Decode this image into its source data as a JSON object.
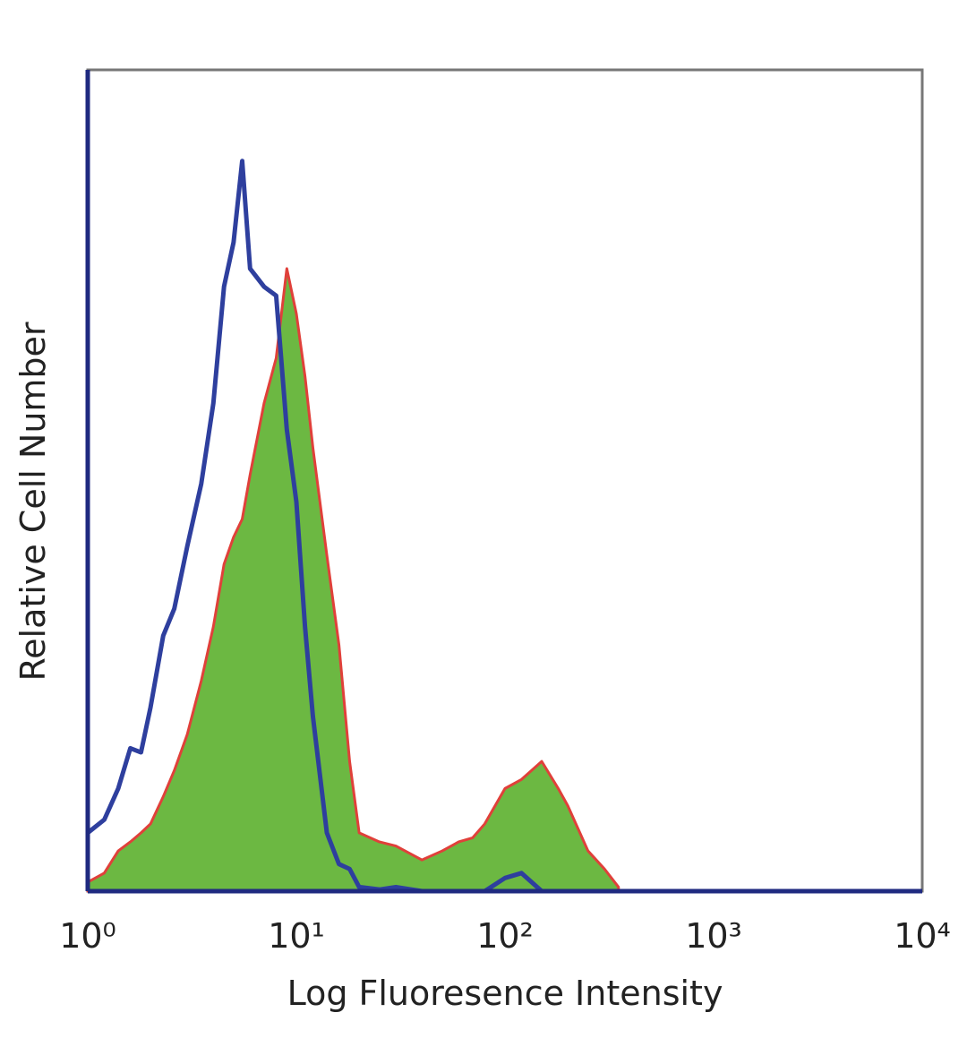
{
  "chart_data": {
    "type": "histogram-overlay",
    "x_label": "Log Fluoresence Intensity",
    "y_label": "Relative Cell Number",
    "xlog": true,
    "xlim": [
      1,
      10000
    ],
    "ylim": [
      0,
      100
    ],
    "xticks": [
      {
        "value": 1,
        "label": "10⁰"
      },
      {
        "value": 10,
        "label": "10¹"
      },
      {
        "value": 100,
        "label": "10²"
      },
      {
        "value": 1000,
        "label": "10³"
      },
      {
        "value": 10000,
        "label": "10⁴"
      }
    ],
    "x": [
      1,
      1.2,
      1.4,
      1.6,
      1.8,
      2,
      2.3,
      2.6,
      3,
      3.5,
      4,
      4.5,
      5,
      5.5,
      6,
      7,
      8,
      9,
      10,
      11,
      12,
      14,
      16,
      18,
      20,
      25,
      30,
      40,
      50,
      60,
      70,
      80,
      100,
      120,
      150,
      180,
      200,
      250,
      300,
      350
    ],
    "series": [
      {
        "style": "line",
        "color": "#2e3f9e",
        "values": [
          7.1,
          8.7,
          12.5,
          17.4,
          16.9,
          22.4,
          31.1,
          34.4,
          42.0,
          49.6,
          59.4,
          73.6,
          79.0,
          88.9,
          75.8,
          73.6,
          72.5,
          56.2,
          47.4,
          32.2,
          21.3,
          7.1,
          3.3,
          2.7,
          0.5,
          0.2,
          0.5,
          0,
          0,
          0,
          0,
          0,
          1.6,
          2.2,
          0,
          0,
          0,
          0,
          0,
          0
        ]
      },
      {
        "style": "area",
        "color": "#6cb842",
        "edge_color": "#e0403a",
        "values": [
          1.1,
          2.2,
          4.9,
          6.0,
          7.1,
          8.2,
          11.5,
          14.7,
          19.1,
          25.6,
          32.2,
          39.8,
          43.1,
          45.3,
          50.7,
          59.4,
          64.9,
          75.8,
          70.3,
          62.7,
          54.0,
          40.9,
          30.0,
          15.8,
          7.1,
          6.0,
          5.5,
          3.8,
          4.9,
          6.0,
          6.5,
          8.2,
          12.5,
          13.6,
          15.8,
          12.5,
          10.4,
          4.9,
          2.7,
          0.5
        ]
      }
    ]
  }
}
